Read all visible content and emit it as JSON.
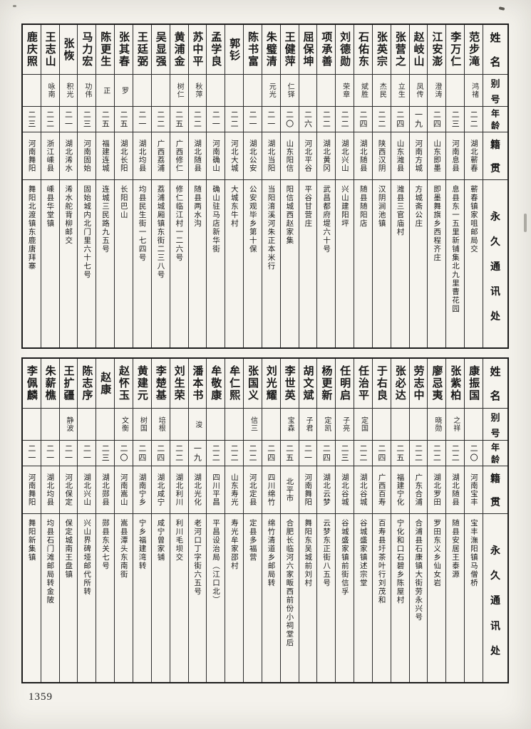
{
  "page": {
    "page_number": "1359"
  },
  "table_headers": [
    "姓名",
    "别号",
    "年龄",
    "籍贯",
    "永久通讯处"
  ],
  "tables": [
    {
      "title": "top-roster",
      "entries": [
        {
          "name": "范步滝",
          "alias": "鸿禇",
          "age": "二二",
          "native_place": "湖北蕲春",
          "address": "蕲春镇家咀邮局交"
        },
        {
          "name": "李万仁",
          "alias": "",
          "age": "二三",
          "native_place": "河南息县",
          "address": "息县东一五里新铺集北九里曹花园"
        },
        {
          "name": "江安澎",
          "alias": "澄涛",
          "age": "二四",
          "native_place": "山东即墨",
          "address": "即墨舞旗乡西程齐庄"
        },
        {
          "name": "赵岐山",
          "alias": "凤传",
          "age": "一九",
          "native_place": "河南方城",
          "address": "方城斋公庄"
        },
        {
          "name": "张营之",
          "alias": "立生",
          "age": "二四",
          "native_place": "山东潍县",
          "address": "潍县三官庙村"
        },
        {
          "name": "张英宗",
          "alias": "杰民",
          "age": "二二",
          "native_place": "陕西汉阴",
          "address": "汉阴涧池镇"
        },
        {
          "name": "石佑东",
          "alias": "斌胜",
          "age": "二四",
          "native_place": "湖北随县",
          "address": "随县随阳店"
        },
        {
          "name": "刘德勋",
          "alias": "荣章",
          "age": "二二",
          "native_place": "湖北兴山",
          "address": "兴山建阳坪"
        },
        {
          "name": "项承善",
          "alias": "",
          "age": "二二",
          "native_place": "湖北黄冈",
          "address": "武昌都府堤六十号"
        },
        {
          "name": "屈保坤",
          "alias": "",
          "age": "二六",
          "native_place": "河北平谷",
          "address": "平谷甘营庄"
        },
        {
          "name": "王健萍",
          "alias": "仁铎",
          "age": "二〇",
          "native_place": "山东阳信",
          "address": "阳信城西赵家集"
        },
        {
          "name": "朱璧清",
          "alias": "元光",
          "age": "二一",
          "native_place": "湖北当阳",
          "address": "当阳淯溪河朱正本米行"
        },
        {
          "name": "陈书富",
          "alias": "",
          "age": "二一",
          "native_place": "湖北公安",
          "address": "公安观毕乡第十保"
        },
        {
          "name": "郭钐",
          "alias": "",
          "age": "二二",
          "native_place": "河北大城",
          "address": "大城东牛村"
        },
        {
          "name": "孟学良",
          "alias": "",
          "age": "二一",
          "native_place": "河南确山",
          "address": "确山驻马店新华街"
        },
        {
          "name": "苏中平",
          "alias": "秋萍",
          "age": "二二",
          "native_place": "湖北随县",
          "address": "随县两水沟"
        },
        {
          "name": "黄浦金",
          "alias": "树仁",
          "age": "二五",
          "native_place": "广西修仁",
          "address": "修仁临江村一二六号"
        },
        {
          "name": "吴显强",
          "alias": "",
          "age": "二二",
          "native_place": "广西荔浦",
          "address": "荔浦城厢镇东街二三八号"
        },
        {
          "name": "王廷弼",
          "alias": "",
          "age": "二一",
          "native_place": "湖北均县",
          "address": "均县民生街一七四号"
        },
        {
          "name": "张其春",
          "alias": "罗",
          "age": "二五",
          "native_place": "湖北长阳",
          "address": "长阳巴山"
        },
        {
          "name": "陈更生",
          "alias": "正",
          "age": "二五",
          "native_place": "福建连城",
          "address": "连城三民路九五号"
        },
        {
          "name": "马力宏",
          "alias": "功伟",
          "age": "二三",
          "native_place": "河南固始",
          "address": "固始城内北门里六十七号"
        },
        {
          "name": "张恢",
          "alias": "积光",
          "age": "二一",
          "native_place": "湖北浠水",
          "address": "浠水舵背柳邮交"
        },
        {
          "name": "王志山",
          "alias": "咏南",
          "age": "二二",
          "native_place": "浙江嵊县",
          "address": "嵊县华堂镇"
        },
        {
          "name": "鹿庆照",
          "alias": "",
          "age": "二三",
          "native_place": "河南舞阳",
          "address": "舞阳北渡镇东鹿唐拜寨"
        }
      ]
    },
    {
      "title": "bottom-roster",
      "entries": [
        {
          "name": "康振国",
          "alias": "",
          "age": "二〇",
          "native_place": "河南宝丰",
          "address": "宝丰潕阳镇马僧桥"
        },
        {
          "name": "张紫柏",
          "alias": "之祥",
          "age": "二二",
          "native_place": "湖北随县",
          "address": "随县安居王泰源"
        },
        {
          "name": "廖忌夷",
          "alias": "晓勋",
          "age": "二二",
          "native_place": "湖北罗田",
          "address": "罗田东义乡仙女岩"
        },
        {
          "name": "劳志中",
          "alias": "",
          "age": "二二",
          "native_place": "广东合浦",
          "address": "合浦县石康镇大街劳永兴号"
        },
        {
          "name": "张必达",
          "alias": "",
          "age": "二五",
          "native_place": "福建宁化",
          "address": "宁化和口石碧乡陈屋村"
        },
        {
          "name": "于右良",
          "alias": "",
          "age": "二四",
          "native_place": "广西百寿",
          "address": "百寿县圩茶叶行刘茂和"
        },
        {
          "name": "任治平",
          "alias": "定国",
          "age": "二二",
          "native_place": "湖北谷城",
          "address": "谷城盛家镇述宗堂"
        },
        {
          "name": "任明启",
          "alias": "子亮",
          "age": "二三",
          "native_place": "湖北谷城",
          "address": "谷城盛家镇前街信孚"
        },
        {
          "name": "杨更新",
          "alias": "定凯",
          "age": "二四",
          "native_place": "湖北云梦",
          "address": "云梦东正街八五号"
        },
        {
          "name": "胡文斌",
          "alias": "子君",
          "age": "二一",
          "native_place": "河南舞阳",
          "address": "舞阳东吴城前刘村"
        },
        {
          "name": "李世英",
          "alias": "宝森",
          "age": "二五",
          "native_place": "北平市",
          "address": "合肥长临河六家畈西前份小祠堂后"
        },
        {
          "name": "刘光耀",
          "alias": "",
          "age": "二四",
          "native_place": "四川绵竹",
          "address": "绵竹清道乡邮局转"
        },
        {
          "name": "张国义",
          "alias": "信三",
          "age": "二二",
          "native_place": "河北定县",
          "address": "定县多福营"
        },
        {
          "name": "牟仁熙",
          "alias": "",
          "age": "二二",
          "native_place": "山东寿光",
          "address": "寿光牟家邵村"
        },
        {
          "name": "牟敬康",
          "alias": "",
          "age": "二二",
          "native_place": "四川平昌",
          "address": "平昌设治局（江口北）"
        },
        {
          "name": "潘本书",
          "alias": "浚",
          "age": "一九",
          "native_place": "湖北光化",
          "address": "老河口丁字街六五号"
        },
        {
          "name": "刘生荣",
          "alias": "",
          "age": "二二",
          "native_place": "湖北利川",
          "address": "利川毛坝交"
        },
        {
          "name": "李楚基",
          "alias": "培根",
          "age": "二四",
          "native_place": "湖北咸宁",
          "address": "咸宁曾家铺"
        },
        {
          "name": "黄建元",
          "alias": "树国",
          "age": "二四",
          "native_place": "湖南宁乡",
          "address": "宁乡福建湾转"
        },
        {
          "name": "赵怀玉",
          "alias": "文衡",
          "age": "二〇",
          "native_place": "河南嵩山",
          "address": "嵩县潭头东南街"
        },
        {
          "name": "赵康",
          "alias": "",
          "age": "二三",
          "native_place": "湖北郧县",
          "address": "郧县东关七号"
        },
        {
          "name": "陈志序",
          "alias": "",
          "age": "二一",
          "native_place": "湖北兴山",
          "address": "兴山界碑垭邮代所转"
        },
        {
          "name": "王扩疆",
          "alias": "静波",
          "age": "二一",
          "native_place": "河北保定",
          "address": "保定城南王盘镇"
        },
        {
          "name": "朱薪樵",
          "alias": "",
          "age": "二一",
          "native_place": "湖北均县",
          "address": "均县石门滩邮局转金陂"
        },
        {
          "name": "李佩麟",
          "alias": "",
          "age": "二一",
          "native_place": "河南舞阳",
          "address": "舞阳新集镇"
        }
      ]
    }
  ]
}
